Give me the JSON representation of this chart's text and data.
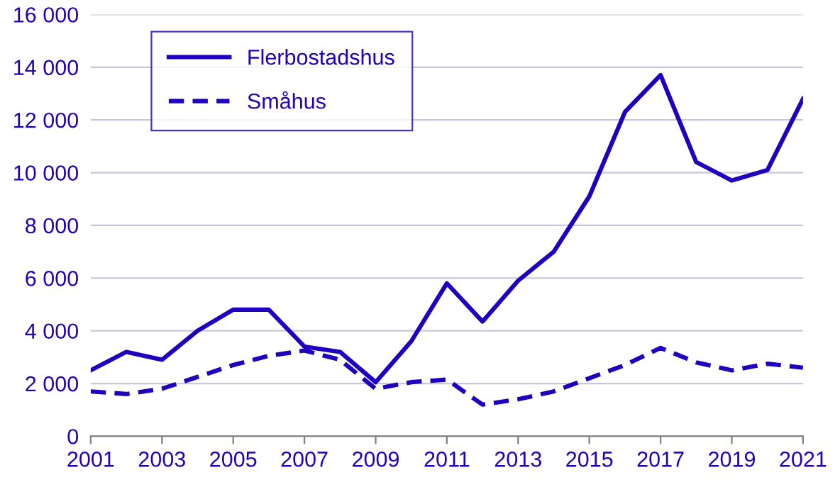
{
  "chart_data": {
    "type": "line",
    "x": [
      2001,
      2002,
      2003,
      2004,
      2005,
      2006,
      2007,
      2008,
      2009,
      2010,
      2011,
      2012,
      2013,
      2014,
      2015,
      2016,
      2017,
      2018,
      2019,
      2020,
      2021
    ],
    "series": [
      {
        "name": "Flerbostadshus",
        "color": "#1e00be",
        "line_style": "solid",
        "values": [
          2500,
          3200,
          2900,
          4000,
          4800,
          4800,
          3400,
          3200,
          2050,
          3600,
          5800,
          4350,
          5900,
          7000,
          9100,
          12300,
          13700,
          10400,
          9700,
          10100,
          12800
        ]
      },
      {
        "name": "Småhus",
        "color": "#1e00be",
        "line_style": "dashed",
        "values": [
          1700,
          1600,
          1800,
          2250,
          2700,
          3050,
          3250,
          2900,
          1800,
          2050,
          2150,
          1200,
          1400,
          1700,
          2200,
          2700,
          3350,
          2800,
          2500,
          2750,
          2600
        ]
      }
    ],
    "xlim": [
      2001,
      2021
    ],
    "xticks": [
      2001,
      2003,
      2005,
      2007,
      2009,
      2011,
      2013,
      2015,
      2017,
      2019,
      2021
    ],
    "ylim": [
      0,
      16000
    ],
    "yticks": [
      0,
      {
        "value": 2000,
        "label": "2 000"
      },
      {
        "value": 4000,
        "label": "4 000"
      },
      {
        "value": 6000,
        "label": "6 000"
      },
      {
        "value": 8000,
        "label": "8 000"
      },
      {
        "value": 10000,
        "label": "10 000"
      },
      {
        "value": 12000,
        "label": "12 000"
      },
      {
        "value": 14000,
        "label": "14 000"
      },
      {
        "value": 16000,
        "label": "16 000"
      }
    ],
    "grid": "y",
    "legend": "top left",
    "marker": "none"
  }
}
